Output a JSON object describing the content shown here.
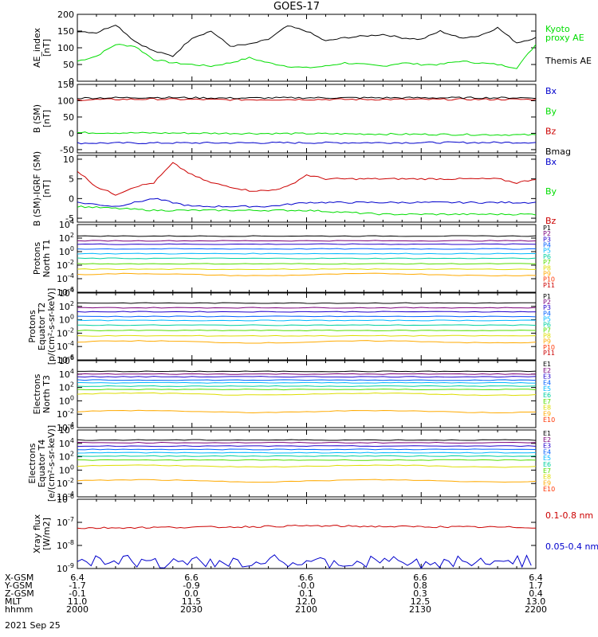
{
  "title": "GOES-17",
  "colors": {
    "black": "#000000",
    "green": "#00dd00",
    "blue": "#0000cc",
    "red": "#cc0000",
    "P": [
      "#000000",
      "#7a007a",
      "#2200cc",
      "#0060ff",
      "#00b8ff",
      "#00d0a0",
      "#55dd00",
      "#dddd00",
      "#ffaa00",
      "#ff3300",
      "#cc0000"
    ],
    "E": [
      "#000000",
      "#7a007a",
      "#2200cc",
      "#0060ff",
      "#00b8ff",
      "#00d0a0",
      "#55dd00",
      "#dddd00",
      "#ffaa00",
      "#ff3300",
      "#cc0000"
    ]
  },
  "chart_data": [
    {
      "type": "line",
      "ylabel": [
        "AE_index",
        "[nT]"
      ],
      "ylim": [
        0,
        200
      ],
      "yticks": [
        "0",
        "50",
        "100",
        "150",
        "200"
      ],
      "series": [
        {
          "name": "Kyoto proxy AE",
          "label_lines": [
            "Kyoto",
            "proxy AE"
          ],
          "color": "green",
          "x": [
            0,
            5,
            10,
            15,
            20,
            25,
            30,
            35,
            40,
            45,
            50,
            55,
            60,
            65,
            70,
            75,
            80,
            85,
            90,
            95,
            100,
            105,
            110,
            115,
            120
          ],
          "values": [
            60,
            75,
            110,
            105,
            65,
            55,
            50,
            45,
            55,
            70,
            55,
            45,
            40,
            45,
            55,
            50,
            45,
            55,
            50,
            50,
            60,
            55,
            50,
            40,
            110
          ]
        },
        {
          "name": "Themis AE",
          "label_lines": [
            "Themis AE"
          ],
          "color": "black",
          "x": [
            0,
            5,
            10,
            15,
            20,
            25,
            30,
            35,
            40,
            45,
            50,
            55,
            60,
            65,
            70,
            75,
            80,
            85,
            90,
            95,
            100,
            105,
            110,
            115,
            120
          ],
          "values": [
            150,
            145,
            170,
            120,
            90,
            75,
            130,
            150,
            105,
            110,
            125,
            165,
            150,
            120,
            130,
            135,
            140,
            130,
            125,
            150,
            130,
            135,
            160,
            115,
            130
          ]
        }
      ]
    },
    {
      "type": "line",
      "ylabel": [
        "B (SM)",
        "[nT]"
      ],
      "ylim": [
        -60,
        150
      ],
      "yticks": [
        "-50",
        "0",
        "50",
        "100",
        "150"
      ],
      "series": [
        {
          "name": "Bx",
          "color": "blue",
          "x": [
            0,
            120
          ],
          "values": [
            -30,
            -28
          ]
        },
        {
          "name": "By",
          "color": "green",
          "x": [
            0,
            60,
            120
          ],
          "values": [
            2,
            -1,
            -5
          ]
        },
        {
          "name": "Bz",
          "color": "red",
          "x": [
            0,
            20,
            40,
            60,
            80,
            100,
            120
          ],
          "values": [
            103,
            105,
            103,
            104,
            104,
            104,
            104
          ]
        },
        {
          "name": "Bmag",
          "color": "black",
          "x": [
            0,
            20,
            40,
            60,
            80,
            100,
            120
          ],
          "values": [
            108,
            110,
            108,
            109,
            109,
            109,
            109
          ]
        }
      ]
    },
    {
      "type": "line",
      "ylabel": [
        "B (SM)-IGRF (SM)",
        "[nT]"
      ],
      "ylim": [
        -6,
        11
      ],
      "yticks": [
        "-5",
        "0",
        "5",
        "10"
      ],
      "series": [
        {
          "name": "Bx",
          "color": "blue",
          "x": [
            0,
            10,
            20,
            30,
            40,
            50,
            60,
            70,
            80,
            90,
            100,
            110,
            120
          ],
          "values": [
            -1,
            -2,
            0,
            -2,
            -2,
            -2,
            -1,
            -1,
            -1,
            -1,
            -1,
            -1,
            -1
          ]
        },
        {
          "name": "By",
          "color": "green",
          "x": [
            0,
            20,
            40,
            60,
            80,
            100,
            120
          ],
          "values": [
            -2,
            -3,
            -3,
            -3,
            -4,
            -4,
            -4
          ]
        },
        {
          "name": "Bz",
          "color": "red",
          "x": [
            0,
            5,
            10,
            15,
            20,
            25,
            30,
            35,
            40,
            45,
            50,
            55,
            60,
            65,
            70,
            75,
            80,
            85,
            90,
            95,
            100,
            105,
            110,
            115,
            120
          ],
          "values": [
            7,
            3,
            1,
            3,
            4,
            9,
            6,
            4,
            3,
            2,
            2,
            3,
            6,
            5,
            5,
            5,
            5,
            5,
            5,
            5,
            5,
            5,
            5,
            4,
            5
          ]
        }
      ]
    },
    {
      "type": "line",
      "ylabel": [
        "Protons",
        "North T1"
      ],
      "ylim": [
        -6,
        4
      ],
      "yticks": [
        "10^4",
        "10^2",
        "10^0",
        "10^-2",
        "10^-4",
        "10^-6"
      ],
      "channels": [
        "P1",
        "P2",
        "P3",
        "P4",
        "P5",
        "P6",
        "P7",
        "P8",
        "P9",
        "P10",
        "P11"
      ],
      "levels": [
        2.3,
        1.6,
        1.1,
        0.4,
        -0.3,
        -1.0,
        -1.8,
        -2.6,
        -3.4,
        null,
        null
      ]
    },
    {
      "type": "line",
      "ylabel": [
        "Protons",
        "Equator T2",
        "[p/(cm²-s-sr-keV)]"
      ],
      "ylim": [
        -6,
        4
      ],
      "yticks": [
        "10^4",
        "10^2",
        "10^0",
        "10^-2",
        "10^-4",
        "10^-6"
      ],
      "channels": [
        "P1",
        "P2",
        "P3",
        "P4",
        "P5",
        "P6",
        "P7",
        "P8",
        "P9",
        "P10",
        "P11"
      ],
      "levels": [
        2.5,
        1.8,
        1.2,
        0.5,
        -0.1,
        -0.8,
        -1.6,
        -2.4,
        -3.3,
        null,
        null
      ]
    },
    {
      "type": "line",
      "ylabel": [
        "Electrons",
        "North T3"
      ],
      "ylim": [
        -4,
        6
      ],
      "yticks": [
        "10^6",
        "10^4",
        "10^2",
        "10^0",
        "10^-2",
        "10^-4"
      ],
      "channels": [
        "E1",
        "E2",
        "E3",
        "E4",
        "E5",
        "E6",
        "E7",
        "E8",
        "E9",
        "E10"
      ],
      "levels": [
        4.4,
        4.0,
        3.6,
        3.1,
        2.7,
        2.2,
        1.7,
        1.0,
        -1.6,
        null
      ]
    },
    {
      "type": "line",
      "ylabel": [
        "Electrons",
        "Equator T4",
        "[e/(cm²-s-sr-keV)]"
      ],
      "ylim": [
        -4,
        6
      ],
      "yticks": [
        "10^6",
        "10^4",
        "10^2",
        "10^0",
        "10^-2",
        "10^-4"
      ],
      "channels": [
        "E1",
        "E2",
        "E3",
        "E4",
        "E5",
        "E6",
        "E7",
        "E8",
        "E9",
        "E10"
      ],
      "levels": [
        4.5,
        4.1,
        3.6,
        3.1,
        2.6,
        2.1,
        1.5,
        0.6,
        -1.6,
        null
      ]
    },
    {
      "type": "line",
      "ylabel": [
        "Xray flux",
        "[W/m2]"
      ],
      "ylim": [
        -9,
        -6
      ],
      "yticks": [
        "10^-6",
        "10^-7",
        "10^-8",
        "10^-9"
      ],
      "series": [
        {
          "name": "0.1-0.8 nm",
          "color": "red",
          "x": [
            0,
            20,
            40,
            60,
            80,
            100,
            120
          ],
          "values": [
            -7.25,
            -7.22,
            -7.2,
            -7.15,
            -7.18,
            -7.2,
            -7.22
          ]
        },
        {
          "name": "0.05-0.4 nm",
          "color": "blue"
        }
      ]
    }
  ],
  "xaxis": {
    "rows": [
      {
        "label": "X-GSM",
        "values": [
          "6.4",
          "6.6",
          "6.6",
          "6.6",
          "6.4"
        ]
      },
      {
        "label": "Y-GSM",
        "values": [
          "-1.7",
          "-0.9",
          "-0.0",
          "0.8",
          "1.7"
        ]
      },
      {
        "label": "Z-GSM",
        "values": [
          "-0.1",
          "0.0",
          "0.1",
          "0.3",
          "0.4"
        ]
      },
      {
        "label": "MLT",
        "values": [
          "11.0",
          "11.5",
          "12.0",
          "12.5",
          "13.0"
        ]
      },
      {
        "label": "hhmm",
        "values": [
          "2000",
          "2030",
          "2100",
          "2130",
          "2200"
        ]
      }
    ],
    "date": "2021 Sep 25"
  }
}
